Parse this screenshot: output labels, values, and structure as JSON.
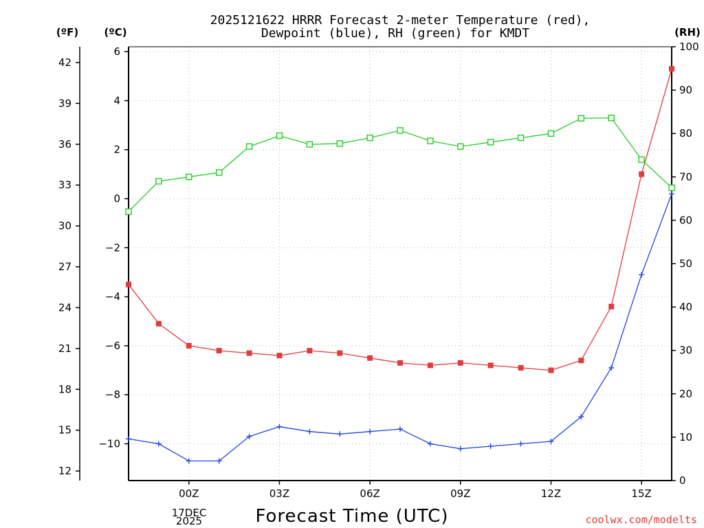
{
  "chart_data": {
    "type": "line",
    "title": [
      "2025121622 HRRR Forecast 2-meter Temperature (red),",
      "Dewpoint (blue), RH (green) for KMDT"
    ],
    "xlabel": "Forecast Time (UTC)",
    "x": [
      "22Z",
      "23Z",
      "00Z",
      "01Z",
      "02Z",
      "03Z",
      "04Z",
      "05Z",
      "06Z",
      "07Z",
      "08Z",
      "09Z",
      "10Z",
      "11Z",
      "12Z",
      "13Z",
      "14Z",
      "15Z",
      "16Z"
    ],
    "x_ticks": [
      "00Z",
      "03Z",
      "06Z",
      "09Z",
      "12Z",
      "15Z"
    ],
    "date_label": [
      "17DEC",
      "2025"
    ],
    "axes": {
      "fahrenheit": {
        "unit": "(ºF)",
        "ticks": [
          "42",
          "39",
          "36",
          "33",
          "30",
          "27",
          "24",
          "21",
          "18",
          "15",
          "12"
        ]
      },
      "celsius": {
        "unit": "(ºC)",
        "ticks": [
          "6",
          "4",
          "2",
          "0",
          "−2",
          "−4",
          "−6",
          "−8",
          "−10"
        ],
        "ylim": [
          -11.5,
          6.2
        ]
      },
      "rh": {
        "unit": "(RH)",
        "ticks": [
          "100",
          "90",
          "80",
          "70",
          "60",
          "50",
          "40",
          "30",
          "20",
          "10",
          "0"
        ],
        "ylim": [
          0,
          100
        ]
      }
    },
    "series": [
      {
        "name": "2-meter Temperature",
        "color": "#e23b3b",
        "axis": "celsius",
        "marker": "filled-square",
        "values": [
          -3.5,
          -5.1,
          -6.0,
          -6.2,
          -6.3,
          -6.4,
          -6.2,
          -6.3,
          -6.5,
          -6.7,
          -6.8,
          -6.7,
          -6.8,
          -6.9,
          -7.0,
          -6.6,
          -4.4,
          1.0,
          5.3
        ]
      },
      {
        "name": "Dewpoint",
        "color": "#2244dd",
        "axis": "celsius",
        "marker": "plus",
        "values": [
          -9.8,
          -10.0,
          -10.7,
          -10.7,
          -9.7,
          -9.3,
          -9.5,
          -9.6,
          -9.5,
          -9.4,
          -10.0,
          -10.2,
          -10.1,
          -10.0,
          -9.9,
          -8.9,
          -6.9,
          -3.1,
          0.2
        ]
      },
      {
        "name": "RH",
        "color": "#22cc22",
        "axis": "rh",
        "marker": "open-square",
        "values": [
          62,
          69,
          70,
          71,
          77,
          79.5,
          77.5,
          77.7,
          79,
          80.7,
          78.3,
          77,
          78,
          79,
          80,
          83.5,
          83.6,
          74,
          67.5
        ]
      }
    ],
    "grid": true
  },
  "credit": "coolwx.com/modelts"
}
